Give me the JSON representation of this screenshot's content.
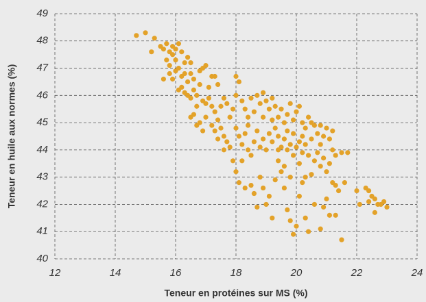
{
  "chart_data": {
    "type": "scatter",
    "x_label": "Teneur en protéines sur MS (%)",
    "y_label": "Teneur en huile aux normes (%)",
    "xlim": [
      12,
      24
    ],
    "xticks": [
      12,
      14,
      16,
      18,
      20,
      22,
      24
    ],
    "ylim": [
      40,
      49
    ],
    "yticks": [
      40,
      41,
      42,
      43,
      44,
      45,
      46,
      47,
      48,
      49
    ],
    "grid": true,
    "color": "#e3a229",
    "x": [
      14.7,
      15.0,
      15.3,
      15.2,
      15.5,
      15.6,
      15.7,
      15.8,
      15.9,
      16.0,
      16.1,
      15.7,
      15.8,
      15.9,
      16.0,
      15.8,
      15.9,
      16.0,
      16.1,
      16.2,
      15.6,
      16.3,
      16.4,
      16.5,
      16.2,
      16.3,
      16.4,
      16.5,
      16.6,
      16.1,
      16.2,
      16.3,
      16.4,
      16.5,
      16.6,
      16.7,
      16.8,
      16.9,
      17.0,
      16.8,
      17.2,
      17.3,
      17.4,
      17.1,
      16.9,
      17.0,
      17.1,
      17.2,
      16.7,
      16.6,
      16.5,
      16.8,
      16.7,
      17.0,
      17.3,
      17.4,
      17.5,
      17.6,
      17.7,
      17.5,
      17.6,
      17.4,
      17.3,
      17.8,
      17.9,
      18.0,
      18.0,
      18.1,
      18.2,
      18.3,
      18.4,
      18.5,
      18.6,
      18.7,
      18.8,
      18.9,
      19.0,
      19.1,
      19.2,
      19.3,
      19.4,
      19.5,
      19.6,
      19.7,
      19.8,
      19.9,
      20.0,
      20.1,
      20.2,
      20.3,
      20.4,
      20.5,
      20.6,
      20.7,
      20.8,
      20.9,
      21.0,
      21.1,
      21.2,
      21.3,
      21.5,
      21.7,
      18.0,
      18.1,
      18.2,
      18.3,
      18.4,
      18.5,
      18.6,
      18.7,
      18.8,
      18.9,
      19.0,
      19.1,
      19.2,
      19.3,
      19.4,
      19.5,
      19.6,
      19.7,
      19.8,
      19.9,
      20.0,
      20.1,
      20.2,
      20.3,
      20.4,
      20.5,
      20.6,
      20.7,
      20.8,
      20.9,
      21.0,
      21.1,
      21.2,
      21.4,
      21.3,
      21.6,
      17.9,
      18.0,
      18.1,
      18.2,
      18.3,
      18.5,
      18.6,
      18.7,
      18.8,
      18.9,
      19.0,
      19.1,
      19.2,
      19.3,
      19.5,
      19.6,
      19.7,
      19.8,
      19.9,
      20.0,
      20.1,
      20.2,
      20.3,
      20.4,
      20.5,
      20.6,
      20.8,
      20.9,
      21.0,
      21.1,
      21.3,
      21.5,
      19.4,
      19.6,
      19.8,
      20.1,
      20.3,
      22.0,
      22.1,
      22.3,
      22.4,
      22.5,
      22.4,
      22.6,
      22.7,
      22.8,
      22.9,
      23.0,
      22.6,
      17.8,
      17.7,
      17.6,
      18.4,
      18.9,
      19.2,
      19.7,
      20.2,
      20.8,
      21.2,
      19.4,
      19.9,
      17.2,
      16.9
    ],
    "values": [
      48.2,
      48.3,
      48.1,
      47.6,
      47.8,
      47.7,
      47.9,
      47.6,
      47.8,
      47.7,
      47.9,
      47.3,
      47.1,
      47.5,
      47.3,
      46.8,
      46.6,
      46.9,
      47.0,
      47.6,
      46.6,
      47.2,
      47.4,
      47.2,
      46.7,
      46.8,
      46.5,
      46.8,
      46.6,
      46.2,
      46.3,
      46.1,
      46.0,
      45.9,
      46.2,
      46.0,
      46.4,
      47.0,
      47.1,
      46.9,
      46.7,
      46.7,
      46.4,
      46.3,
      45.8,
      45.7,
      45.9,
      45.6,
      45.6,
      45.3,
      45.2,
      45.0,
      44.9,
      45.2,
      45.4,
      45.1,
      45.6,
      45.9,
      45.7,
      44.8,
      44.5,
      44.4,
      44.7,
      45.2,
      45.5,
      46.0,
      46.7,
      46.5,
      45.8,
      45.5,
      45.2,
      45.9,
      45.4,
      46.0,
      45.7,
      46.1,
      45.8,
      45.5,
      45.9,
      45.6,
      45.2,
      45.5,
      45.0,
      45.3,
      45.7,
      45.1,
      45.4,
      45.6,
      45.0,
      44.8,
      45.2,
      45.0,
      44.9,
      44.6,
      44.9,
      44.5,
      44.8,
      44.4,
      44.0,
      43.8,
      43.9,
      43.9,
      44.8,
      44.5,
      44.2,
      44.6,
      44.0,
      43.8,
      44.3,
      44.7,
      44.1,
      44.4,
      44.0,
      44.6,
      44.3,
      44.8,
      44.5,
      44.1,
      44.4,
      44.0,
      44.2,
      44.6,
      44.1,
      44.3,
      43.9,
      44.2,
      43.8,
      44.4,
      43.6,
      43.9,
      43.4,
      43.7,
      43.2,
      43.5,
      42.8,
      42.5,
      42.7,
      42.8,
      43.6,
      43.2,
      42.8,
      43.6,
      42.6,
      42.7,
      42.4,
      41.9,
      43.0,
      42.6,
      42.0,
      42.3,
      41.5,
      42.9,
      43.2,
      42.6,
      41.8,
      41.4,
      40.9,
      41.2,
      42.3,
      42.8,
      41.5,
      41.0,
      43.1,
      42.0,
      41.1,
      41.9,
      42.2,
      41.6,
      41.6,
      40.7,
      43.6,
      43.4,
      43.0,
      43.5,
      43.0,
      42.5,
      42.0,
      42.6,
      42.5,
      42.3,
      42.1,
      41.7,
      42.0,
      42.0,
      42.1,
      41.9,
      42.2,
      44.1,
      44.3,
      44.0,
      44.9,
      45.2,
      45.1,
      44.7,
      44.5,
      44.2,
      44.7,
      44.0,
      43.8,
      44.9,
      44.7
    ]
  }
}
